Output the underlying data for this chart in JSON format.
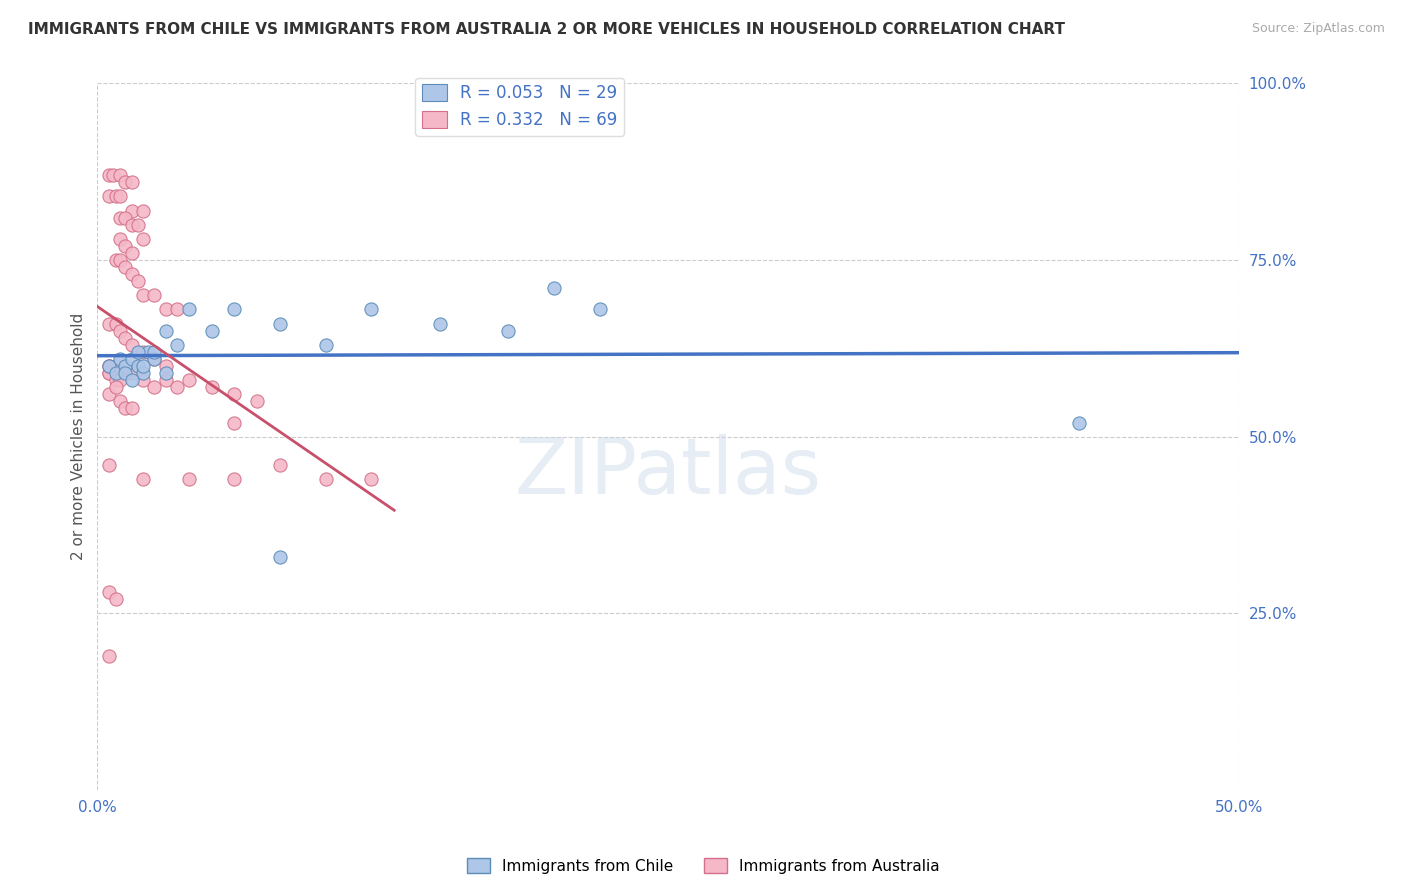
{
  "title": "IMMIGRANTS FROM CHILE VS IMMIGRANTS FROM AUSTRALIA 2 OR MORE VEHICLES IN HOUSEHOLD CORRELATION CHART",
  "source_text": "Source: ZipAtlas.com",
  "ylabel": "2 or more Vehicles in Household",
  "xlim": [
    0.0,
    0.5
  ],
  "ylim": [
    0.0,
    1.0
  ],
  "watermark": "ZIPatlas",
  "chile_color": "#aec6e8",
  "chile_edge_color": "#5b8db8",
  "australia_color": "#f4b8c8",
  "australia_edge_color": "#d4708a",
  "chile_R": 0.053,
  "chile_N": 29,
  "australia_R": 0.332,
  "australia_N": 69,
  "chile_line_color": "#4472c4",
  "australia_line_color": "#c8506a",
  "chile_scatter_x": [
    0.005,
    0.008,
    0.01,
    0.012,
    0.015,
    0.018,
    0.02,
    0.022,
    0.025,
    0.03,
    0.012,
    0.015,
    0.018,
    0.02,
    0.025,
    0.03,
    0.035,
    0.04,
    0.05,
    0.06,
    0.08,
    0.1,
    0.12,
    0.15,
    0.18,
    0.2,
    0.22,
    0.43,
    0.08
  ],
  "chile_scatter_y": [
    0.6,
    0.59,
    0.61,
    0.6,
    0.61,
    0.6,
    0.59,
    0.62,
    0.61,
    0.59,
    0.59,
    0.58,
    0.62,
    0.6,
    0.62,
    0.65,
    0.63,
    0.68,
    0.65,
    0.68,
    0.66,
    0.63,
    0.68,
    0.66,
    0.65,
    0.71,
    0.68,
    0.52,
    0.33
  ],
  "australia_scatter_x": [
    0.005,
    0.007,
    0.01,
    0.012,
    0.015,
    0.005,
    0.008,
    0.01,
    0.015,
    0.02,
    0.01,
    0.012,
    0.015,
    0.018,
    0.02,
    0.01,
    0.012,
    0.015,
    0.008,
    0.01,
    0.012,
    0.015,
    0.018,
    0.02,
    0.025,
    0.03,
    0.035,
    0.005,
    0.008,
    0.01,
    0.012,
    0.015,
    0.02,
    0.025,
    0.03,
    0.015,
    0.02,
    0.025,
    0.03,
    0.035,
    0.04,
    0.05,
    0.06,
    0.07,
    0.005,
    0.008,
    0.005,
    0.007,
    0.01,
    0.005,
    0.008,
    0.01,
    0.005,
    0.005,
    0.008,
    0.01,
    0.012,
    0.015,
    0.005,
    0.06,
    0.08,
    0.1,
    0.12,
    0.005,
    0.008,
    0.02,
    0.04,
    0.06,
    0.005
  ],
  "australia_scatter_y": [
    0.87,
    0.87,
    0.87,
    0.86,
    0.86,
    0.84,
    0.84,
    0.84,
    0.82,
    0.82,
    0.81,
    0.81,
    0.8,
    0.8,
    0.78,
    0.78,
    0.77,
    0.76,
    0.75,
    0.75,
    0.74,
    0.73,
    0.72,
    0.7,
    0.7,
    0.68,
    0.68,
    0.66,
    0.66,
    0.65,
    0.64,
    0.63,
    0.62,
    0.61,
    0.6,
    0.59,
    0.58,
    0.57,
    0.58,
    0.57,
    0.58,
    0.57,
    0.56,
    0.55,
    0.6,
    0.6,
    0.59,
    0.59,
    0.59,
    0.59,
    0.58,
    0.58,
    0.6,
    0.56,
    0.57,
    0.55,
    0.54,
    0.54,
    0.46,
    0.52,
    0.46,
    0.44,
    0.44,
    0.28,
    0.27,
    0.44,
    0.44,
    0.44,
    0.19
  ]
}
